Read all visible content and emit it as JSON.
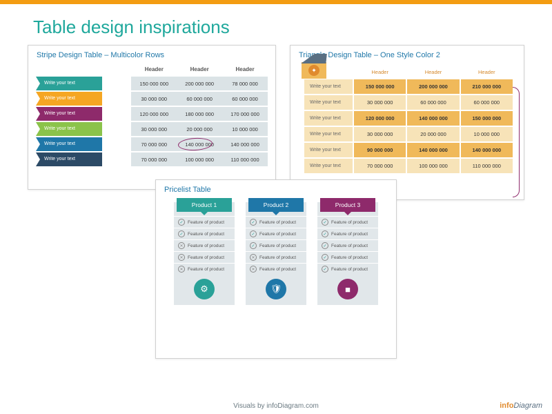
{
  "page": {
    "title": "Table design inspirations",
    "footer": "Visuals by infoDiagram.com",
    "logo_part1": "info",
    "logo_part2": "Diagram"
  },
  "colors": {
    "accent_bar": "#f39c12",
    "title": "#1fa89c",
    "panel_title": "#1f77a8"
  },
  "stripe": {
    "title": "Stripe Design Table – Multicolor Rows",
    "headers": [
      "Header",
      "Header",
      "Header"
    ],
    "row_colors": [
      "#2aa198",
      "#f5a623",
      "#8e2a6b",
      "#8bc34a",
      "#1f77a8",
      "#2c4a66"
    ],
    "rows": [
      {
        "label": "Write your text",
        "vals": [
          "150 000 000",
          "200 000 000",
          "78 000 000"
        ]
      },
      {
        "label": "Write your text",
        "vals": [
          "30 000 000",
          "60 000 000",
          "60 000 000"
        ]
      },
      {
        "label": "Write your text",
        "vals": [
          "120 000 000",
          "180 000 000",
          "170 000 000"
        ]
      },
      {
        "label": "Write your text",
        "vals": [
          "30 000 000",
          "20 000 000",
          "10 000 000"
        ]
      },
      {
        "label": "Write your text",
        "vals": [
          "70 000 000",
          "140 000 000",
          "140 000 000"
        ]
      },
      {
        "label": "Write your text",
        "vals": [
          "70 000 000",
          "100 000 000",
          "110 000 000"
        ]
      }
    ],
    "circled_cell": [
      4,
      1
    ],
    "stripe_bg": "#dbe3e6"
  },
  "triangle": {
    "title": "Triangle Design Table – One Style Color 2",
    "headers": [
      "Header",
      "Header",
      "Header"
    ],
    "cell_bg": "#f7e3b8",
    "highlight_bg": "#f0b95a",
    "header_color": "#d68a2e",
    "rows": [
      {
        "label": "Write your text",
        "vals": [
          "150 000 000",
          "200 000 000",
          "210 000 000"
        ],
        "hl": true
      },
      {
        "label": "Write your text",
        "vals": [
          "30 000 000",
          "60 000 000",
          "60 000 000"
        ],
        "hl": false
      },
      {
        "label": "Write your text",
        "vals": [
          "120 000 000",
          "140 000 000",
          "150 000 000"
        ],
        "hl": true
      },
      {
        "label": "Write your text",
        "vals": [
          "30 000 000",
          "20 000 000",
          "10 000 000"
        ],
        "hl": false
      },
      {
        "label": "Write your text",
        "vals": [
          "90 000 000",
          "140 000 000",
          "140 000 000"
        ],
        "hl": true
      },
      {
        "label": "Write your text",
        "vals": [
          "70 000 000",
          "100 000 000",
          "110 000 000"
        ],
        "hl": false
      }
    ]
  },
  "pricelist": {
    "title": "Pricelist Table",
    "product_colors": [
      "#2aa198",
      "#1f77a8",
      "#8e2a6b"
    ],
    "foot_colors": [
      "#2aa198",
      "#1f77a8",
      "#8e2a6b"
    ],
    "foot_icons": [
      "⚙",
      "🛡",
      "■"
    ],
    "products": [
      {
        "name": "Product 1",
        "features": [
          {
            "text": "Feature of product",
            "ok": true
          },
          {
            "text": "Feature of product",
            "ok": true
          },
          {
            "text": "Feature of product",
            "ok": false
          },
          {
            "text": "Feature of product",
            "ok": false
          },
          {
            "text": "Feature of product",
            "ok": false
          }
        ]
      },
      {
        "name": "Product 2",
        "features": [
          {
            "text": "Feature of product",
            "ok": true
          },
          {
            "text": "Feature of product",
            "ok": true
          },
          {
            "text": "Feature of product",
            "ok": true
          },
          {
            "text": "Feature of product",
            "ok": false
          },
          {
            "text": "Feature of product",
            "ok": false
          }
        ]
      },
      {
        "name": "Product 3",
        "features": [
          {
            "text": "Feature of product",
            "ok": true
          },
          {
            "text": "Feature of product",
            "ok": true
          },
          {
            "text": "Feature of product",
            "ok": true
          },
          {
            "text": "Feature of product",
            "ok": true
          },
          {
            "text": "Feature of product",
            "ok": true
          }
        ]
      }
    ]
  }
}
